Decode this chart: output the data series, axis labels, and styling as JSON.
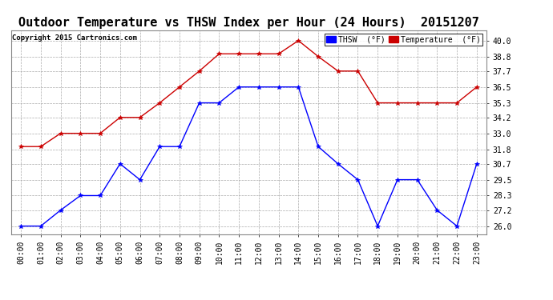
{
  "title": "Outdoor Temperature vs THSW Index per Hour (24 Hours)  20151207",
  "copyright": "Copyright 2015 Cartronics.com",
  "hours": [
    "00:00",
    "01:00",
    "02:00",
    "03:00",
    "04:00",
    "05:00",
    "06:00",
    "07:00",
    "08:00",
    "09:00",
    "10:00",
    "11:00",
    "12:00",
    "13:00",
    "14:00",
    "15:00",
    "16:00",
    "17:00",
    "18:00",
    "19:00",
    "20:00",
    "21:00",
    "22:00",
    "23:00"
  ],
  "thsw": [
    26.0,
    26.0,
    27.2,
    28.3,
    28.3,
    30.7,
    29.5,
    32.0,
    32.0,
    35.3,
    35.3,
    36.5,
    36.5,
    36.5,
    36.5,
    32.0,
    30.7,
    29.5,
    26.0,
    29.5,
    29.5,
    27.2,
    26.0,
    30.7
  ],
  "temperature": [
    32.0,
    32.0,
    33.0,
    33.0,
    33.0,
    34.2,
    34.2,
    35.3,
    36.5,
    37.7,
    39.0,
    39.0,
    39.0,
    39.0,
    40.0,
    38.8,
    37.7,
    37.7,
    35.3,
    35.3,
    35.3,
    35.3,
    35.3,
    36.5
  ],
  "thsw_color": "#0000ff",
  "temp_color": "#cc0000",
  "background_color": "#ffffff",
  "plot_bg_color": "#ffffff",
  "grid_color": "#aaaaaa",
  "ylim_min": 25.4,
  "ylim_max": 40.8,
  "yticks": [
    26.0,
    27.2,
    28.3,
    29.5,
    30.7,
    31.8,
    33.0,
    34.2,
    35.3,
    36.5,
    37.7,
    38.8,
    40.0
  ],
  "title_fontsize": 11,
  "copyright_fontsize": 6.5,
  "tick_fontsize": 7,
  "legend_thsw_label": "THSW  (°F)",
  "legend_temp_label": "Temperature  (°F)"
}
